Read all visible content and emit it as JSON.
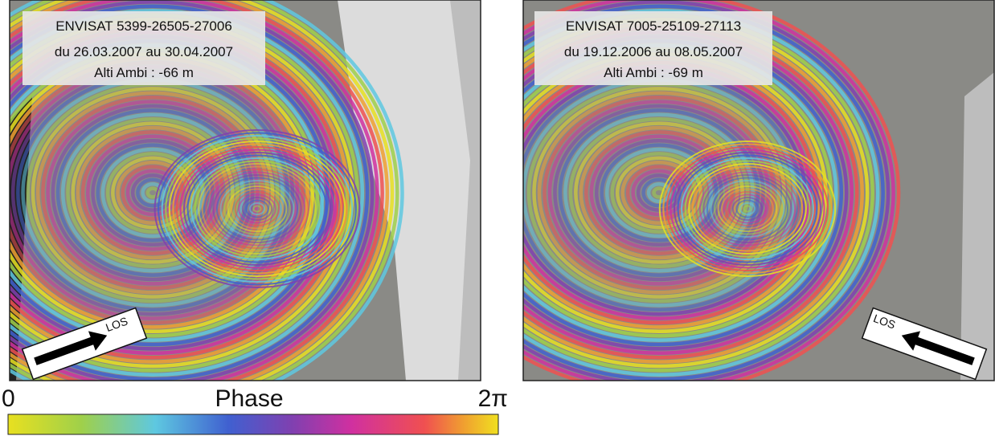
{
  "panels": [
    {
      "title": "ENVISAT 5399-26505-27006",
      "dates": "du 26.03.2007 au 30.04.2007",
      "altitude": "Alti Ambi : -66 m",
      "los": "LOS"
    },
    {
      "title": "ENVISAT 7005-25109-27113",
      "dates": "du 19.12.2006 au 08.05.2007",
      "altitude": "Alti Ambi : -69 m",
      "los": "LOS"
    }
  ],
  "colorbar": {
    "min_label": "0",
    "title": "Phase",
    "max_label": "2π"
  }
}
